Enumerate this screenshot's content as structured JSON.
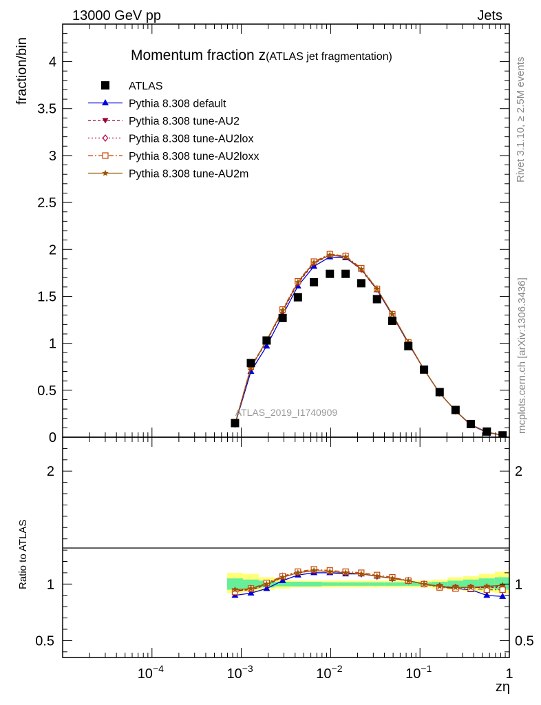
{
  "header": {
    "left": "13000 GeV pp",
    "right": "Jets"
  },
  "side": {
    "rivet": "Rivet 3.1.10, ≥ 2.5M events",
    "mcplots": "mcplots.cern.ch [arXiv:1306.3436]"
  },
  "chart_data": {
    "type": "line",
    "title_main": "Momentum fraction z",
    "title_sub": "(ATLAS jet fragmentation)",
    "watermark": "ATLAS_2019_I1740909",
    "xlabel": "zη",
    "ylabel_top": "fraction/bin",
    "ylabel_bottom": "Ratio to ATLAS",
    "xscale": "log",
    "xlim": [
      1e-05,
      1
    ],
    "ylim_top": [
      0,
      4.4
    ],
    "ylim_bottom": [
      0.35,
      2.3
    ],
    "yticks_top": [
      "0",
      "0.5",
      "1",
      "1.5",
      "2",
      "2.5",
      "3",
      "3.5",
      "4"
    ],
    "yticks_bottom": [
      "0.5",
      "1",
      "2"
    ],
    "xtick_labels": [
      {
        "base": "10",
        "exp": "−4"
      },
      {
        "base": "10",
        "exp": "−3"
      },
      {
        "base": "10",
        "exp": "−2"
      },
      {
        "base": "10",
        "exp": "−1"
      },
      {
        "base": "1",
        "exp": ""
      }
    ],
    "x": [
      0.00085,
      0.00128,
      0.00192,
      0.0029,
      0.0043,
      0.0065,
      0.0098,
      0.0147,
      0.022,
      0.033,
      0.049,
      0.074,
      0.111,
      0.166,
      0.25,
      0.37,
      0.56,
      0.84
    ],
    "data": {
      "name": "ATLAS",
      "values": [
        0.15,
        0.79,
        1.03,
        1.27,
        1.49,
        1.65,
        1.74,
        1.74,
        1.64,
        1.47,
        1.24,
        0.97,
        0.72,
        0.48,
        0.29,
        0.14,
        0.06,
        0.02
      ]
    },
    "series": [
      {
        "name": "Pythia 8.308 default",
        "color": "#0000dd",
        "dash": "",
        "marker": "triangle-up",
        "values": [
          0.135,
          0.7,
          0.97,
          1.3,
          1.61,
          1.82,
          1.92,
          1.91,
          1.79,
          1.57,
          1.3,
          1.0,
          0.72,
          0.47,
          0.28,
          0.13,
          0.05,
          0.02
        ],
        "ratio": [
          0.9,
          0.92,
          0.96,
          1.03,
          1.08,
          1.1,
          1.1,
          1.09,
          1.09,
          1.07,
          1.05,
          1.03,
          1.0,
          0.98,
          0.96,
          0.95,
          0.9,
          0.89
        ]
      },
      {
        "name": "Pythia 8.308 tune-AU2",
        "color": "#990033",
        "dash": "4,3",
        "marker": "triangle-down",
        "values": [
          0.14,
          0.74,
          1.02,
          1.34,
          1.64,
          1.85,
          1.94,
          1.92,
          1.78,
          1.57,
          1.3,
          1.0,
          0.72,
          0.47,
          0.28,
          0.135,
          0.055,
          0.02
        ],
        "ratio": [
          0.94,
          0.95,
          0.99,
          1.06,
          1.1,
          1.12,
          1.11,
          1.1,
          1.09,
          1.07,
          1.05,
          1.03,
          1.0,
          0.98,
          0.97,
          0.97,
          0.97,
          0.98
        ]
      },
      {
        "name": "Pythia 8.308 tune-AU2lox",
        "color": "#bb0044",
        "dash": "2,3",
        "marker": "diamond-open",
        "values": [
          0.14,
          0.75,
          1.03,
          1.35,
          1.65,
          1.86,
          1.95,
          1.93,
          1.79,
          1.58,
          1.31,
          1.01,
          0.72,
          0.47,
          0.28,
          0.135,
          0.055,
          0.02
        ],
        "ratio": [
          0.94,
          0.96,
          1.0,
          1.07,
          1.1,
          1.12,
          1.11,
          1.1,
          1.09,
          1.07,
          1.05,
          1.03,
          1.0,
          0.98,
          0.97,
          0.97,
          0.97,
          0.97
        ]
      },
      {
        "name": "Pythia 8.308 tune-AU2loxx",
        "color": "#cc4400",
        "dash": "7,3,2,3",
        "marker": "square-open",
        "values": [
          0.14,
          0.75,
          1.03,
          1.36,
          1.66,
          1.87,
          1.95,
          1.93,
          1.8,
          1.58,
          1.31,
          1.01,
          0.72,
          0.47,
          0.28,
          0.135,
          0.055,
          0.02
        ],
        "ratio": [
          0.93,
          0.96,
          1.01,
          1.07,
          1.11,
          1.13,
          1.12,
          1.11,
          1.1,
          1.08,
          1.06,
          1.03,
          1.0,
          0.97,
          0.96,
          0.96,
          0.95,
          0.95
        ]
      },
      {
        "name": "Pythia 8.308 tune-AU2m",
        "color": "#995500",
        "dash": "",
        "marker": "star",
        "values": [
          0.14,
          0.74,
          1.03,
          1.35,
          1.65,
          1.86,
          1.94,
          1.92,
          1.79,
          1.58,
          1.31,
          1.01,
          0.72,
          0.47,
          0.28,
          0.135,
          0.055,
          0.02
        ],
        "ratio": [
          0.95,
          0.96,
          1.0,
          1.06,
          1.1,
          1.12,
          1.11,
          1.1,
          1.09,
          1.07,
          1.05,
          1.03,
          1.0,
          0.98,
          0.97,
          0.97,
          0.98,
          0.99
        ]
      }
    ],
    "uncertainty_bands": {
      "inner_color": "#66ee99",
      "outer_color": "#ffff77",
      "inner": [
        [
          0.95,
          1.05
        ],
        [
          0.96,
          1.04
        ],
        [
          0.97,
          1.03
        ],
        [
          0.98,
          1.02
        ],
        [
          0.98,
          1.02
        ],
        [
          0.98,
          1.02
        ],
        [
          0.985,
          1.015
        ],
        [
          0.985,
          1.015
        ],
        [
          0.985,
          1.015
        ],
        [
          0.985,
          1.015
        ],
        [
          0.985,
          1.015
        ],
        [
          0.985,
          1.015
        ],
        [
          0.985,
          1.015
        ],
        [
          0.98,
          1.02
        ],
        [
          0.97,
          1.03
        ],
        [
          0.97,
          1.04
        ],
        [
          0.96,
          1.05
        ],
        [
          0.95,
          1.06
        ]
      ],
      "outer": [
        [
          0.92,
          1.1
        ],
        [
          0.93,
          1.09
        ],
        [
          0.95,
          1.06
        ],
        [
          0.96,
          1.04
        ],
        [
          0.97,
          1.03
        ],
        [
          0.97,
          1.03
        ],
        [
          0.97,
          1.03
        ],
        [
          0.97,
          1.03
        ],
        [
          0.97,
          1.03
        ],
        [
          0.97,
          1.03
        ],
        [
          0.97,
          1.03
        ],
        [
          0.97,
          1.03
        ],
        [
          0.97,
          1.03
        ],
        [
          0.96,
          1.04
        ],
        [
          0.95,
          1.06
        ],
        [
          0.94,
          1.07
        ],
        [
          0.93,
          1.09
        ],
        [
          0.92,
          1.11
        ]
      ]
    }
  }
}
